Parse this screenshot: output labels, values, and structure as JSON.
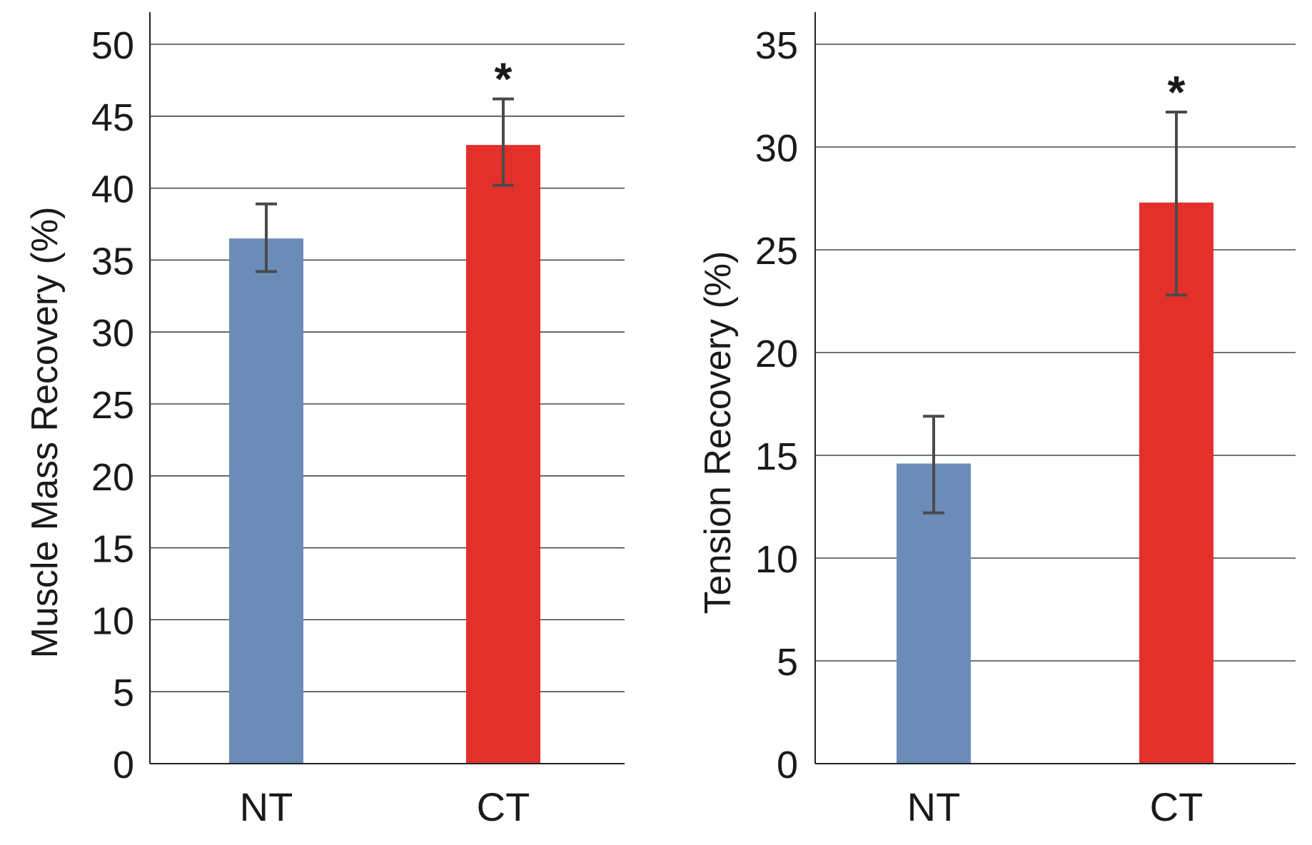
{
  "chart_data": [
    {
      "type": "bar",
      "id": "left",
      "ylabel": "Muscle Mass Recovery (%)",
      "xlabel": "",
      "categories": [
        "NT",
        "CT"
      ],
      "values": [
        36.5,
        43.0
      ],
      "error_low": [
        34.2,
        40.2
      ],
      "error_high": [
        38.9,
        46.2
      ],
      "significance": [
        "",
        "*"
      ],
      "colors": [
        "#6b8cb8",
        "#e3302b"
      ],
      "ylim": [
        0,
        50
      ],
      "yticks": [
        0,
        5,
        10,
        15,
        20,
        25,
        30,
        35,
        40,
        45,
        50
      ],
      "grid": true
    },
    {
      "type": "bar",
      "id": "right",
      "ylabel": "Tension Recovery (%)",
      "xlabel": "",
      "categories": [
        "NT",
        "CT"
      ],
      "values": [
        14.6,
        27.3
      ],
      "error_low": [
        12.2,
        22.8
      ],
      "error_high": [
        16.9,
        31.7
      ],
      "significance": [
        "",
        "*"
      ],
      "colors": [
        "#6b8cb8",
        "#e3302b"
      ],
      "ylim": [
        0,
        35
      ],
      "yticks": [
        0,
        5,
        10,
        15,
        20,
        25,
        30,
        35
      ],
      "grid": true
    }
  ]
}
